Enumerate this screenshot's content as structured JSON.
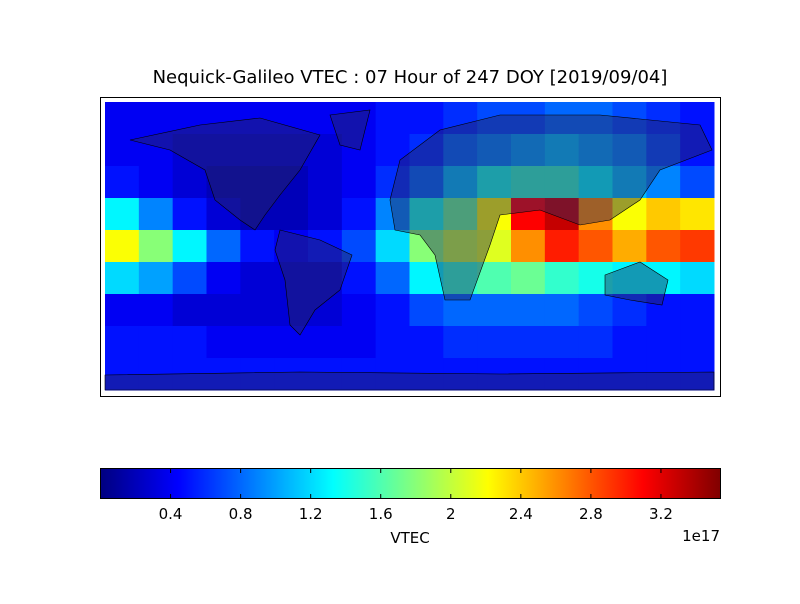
{
  "chart_data": {
    "type": "heatmap",
    "title": "Nequick-Galileo VTEC : 07 Hour of 247 DOY [2019/09/04]",
    "colormap": "jet",
    "colorbar_label": "VTEC",
    "colorbar_offset": "1e17",
    "clim": [
      0,
      3.54
    ],
    "cticks": [
      0.4,
      0.8,
      1.2,
      1.6,
      2.0,
      2.4,
      2.8,
      3.2
    ],
    "z": [
      [
        0.4,
        0.4,
        0.4,
        0.4,
        0.4,
        0.4,
        0.4,
        0.4,
        0.5,
        0.5,
        0.6,
        0.7,
        0.7,
        0.8,
        0.8,
        0.7,
        0.6,
        0.5
      ],
      [
        0.4,
        0.4,
        0.3,
        0.3,
        0.3,
        0.3,
        0.3,
        0.4,
        0.5,
        0.6,
        0.8,
        0.9,
        1.0,
        1.1,
        1.0,
        0.9,
        0.7,
        0.5
      ],
      [
        0.5,
        0.4,
        0.3,
        0.2,
        0.2,
        0.2,
        0.3,
        0.4,
        0.6,
        0.8,
        1.1,
        1.4,
        1.5,
        1.5,
        1.3,
        1.1,
        0.9,
        0.7
      ],
      [
        1.3,
        0.9,
        0.5,
        0.3,
        0.2,
        0.2,
        0.3,
        0.5,
        0.9,
        1.4,
        1.7,
        2.2,
        3.1,
        3.3,
        2.6,
        2.2,
        2.4,
        2.3
      ],
      [
        2.2,
        1.8,
        1.3,
        0.8,
        0.5,
        0.4,
        0.5,
        0.7,
        1.2,
        1.8,
        2.0,
        2.1,
        2.6,
        3.0,
        2.8,
        2.5,
        2.8,
        2.9
      ],
      [
        1.2,
        1.0,
        0.7,
        0.4,
        0.3,
        0.3,
        0.3,
        0.5,
        0.8,
        1.3,
        1.5,
        1.6,
        1.7,
        1.5,
        1.4,
        1.3,
        1.3,
        1.2
      ],
      [
        0.4,
        0.4,
        0.3,
        0.3,
        0.3,
        0.3,
        0.3,
        0.4,
        0.5,
        0.7,
        0.8,
        0.8,
        0.8,
        0.8,
        0.7,
        0.6,
        0.5,
        0.5
      ],
      [
        0.5,
        0.5,
        0.5,
        0.4,
        0.4,
        0.4,
        0.4,
        0.4,
        0.5,
        0.5,
        0.6,
        0.6,
        0.6,
        0.6,
        0.6,
        0.5,
        0.5,
        0.5
      ],
      [
        0.5,
        0.5,
        0.5,
        0.5,
        0.5,
        0.5,
        0.5,
        0.5,
        0.5,
        0.5,
        0.5,
        0.5,
        0.5,
        0.5,
        0.5,
        0.5,
        0.5,
        0.5
      ]
    ]
  }
}
